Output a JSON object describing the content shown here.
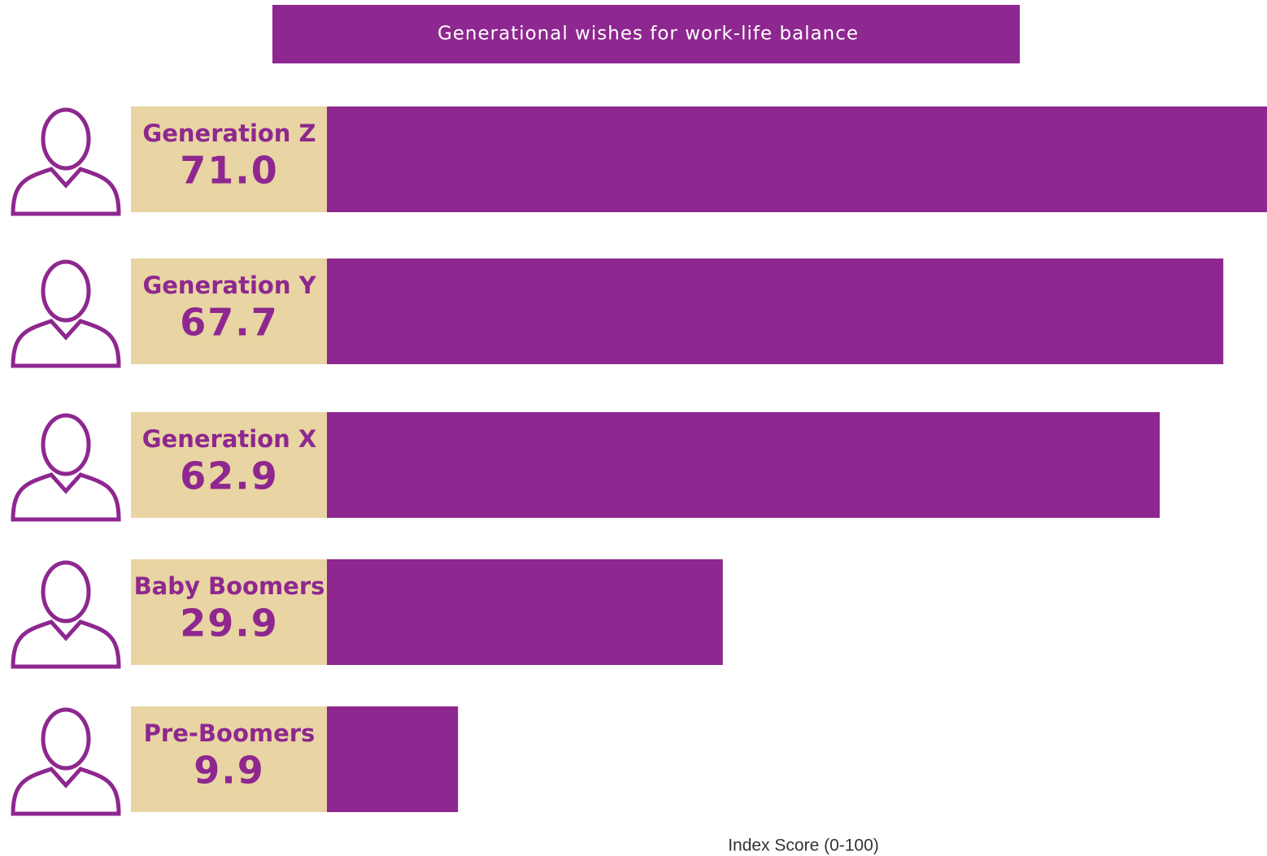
{
  "chart_data": {
    "type": "bar",
    "orientation": "horizontal",
    "title": "Generational wishes for work-life balance",
    "categories": [
      "Generation Z",
      "Generation Y",
      "Generation X",
      "Baby Boomers",
      "Pre-Boomers"
    ],
    "values": [
      71.0,
      67.7,
      62.9,
      29.9,
      9.9
    ],
    "value_labels": [
      "71.0",
      "67.7",
      "62.9",
      "29.9",
      "9.9"
    ],
    "xlabel": "Index Score (0-100)",
    "color": "#8e278f",
    "label_background": "#e9d4a3"
  }
}
